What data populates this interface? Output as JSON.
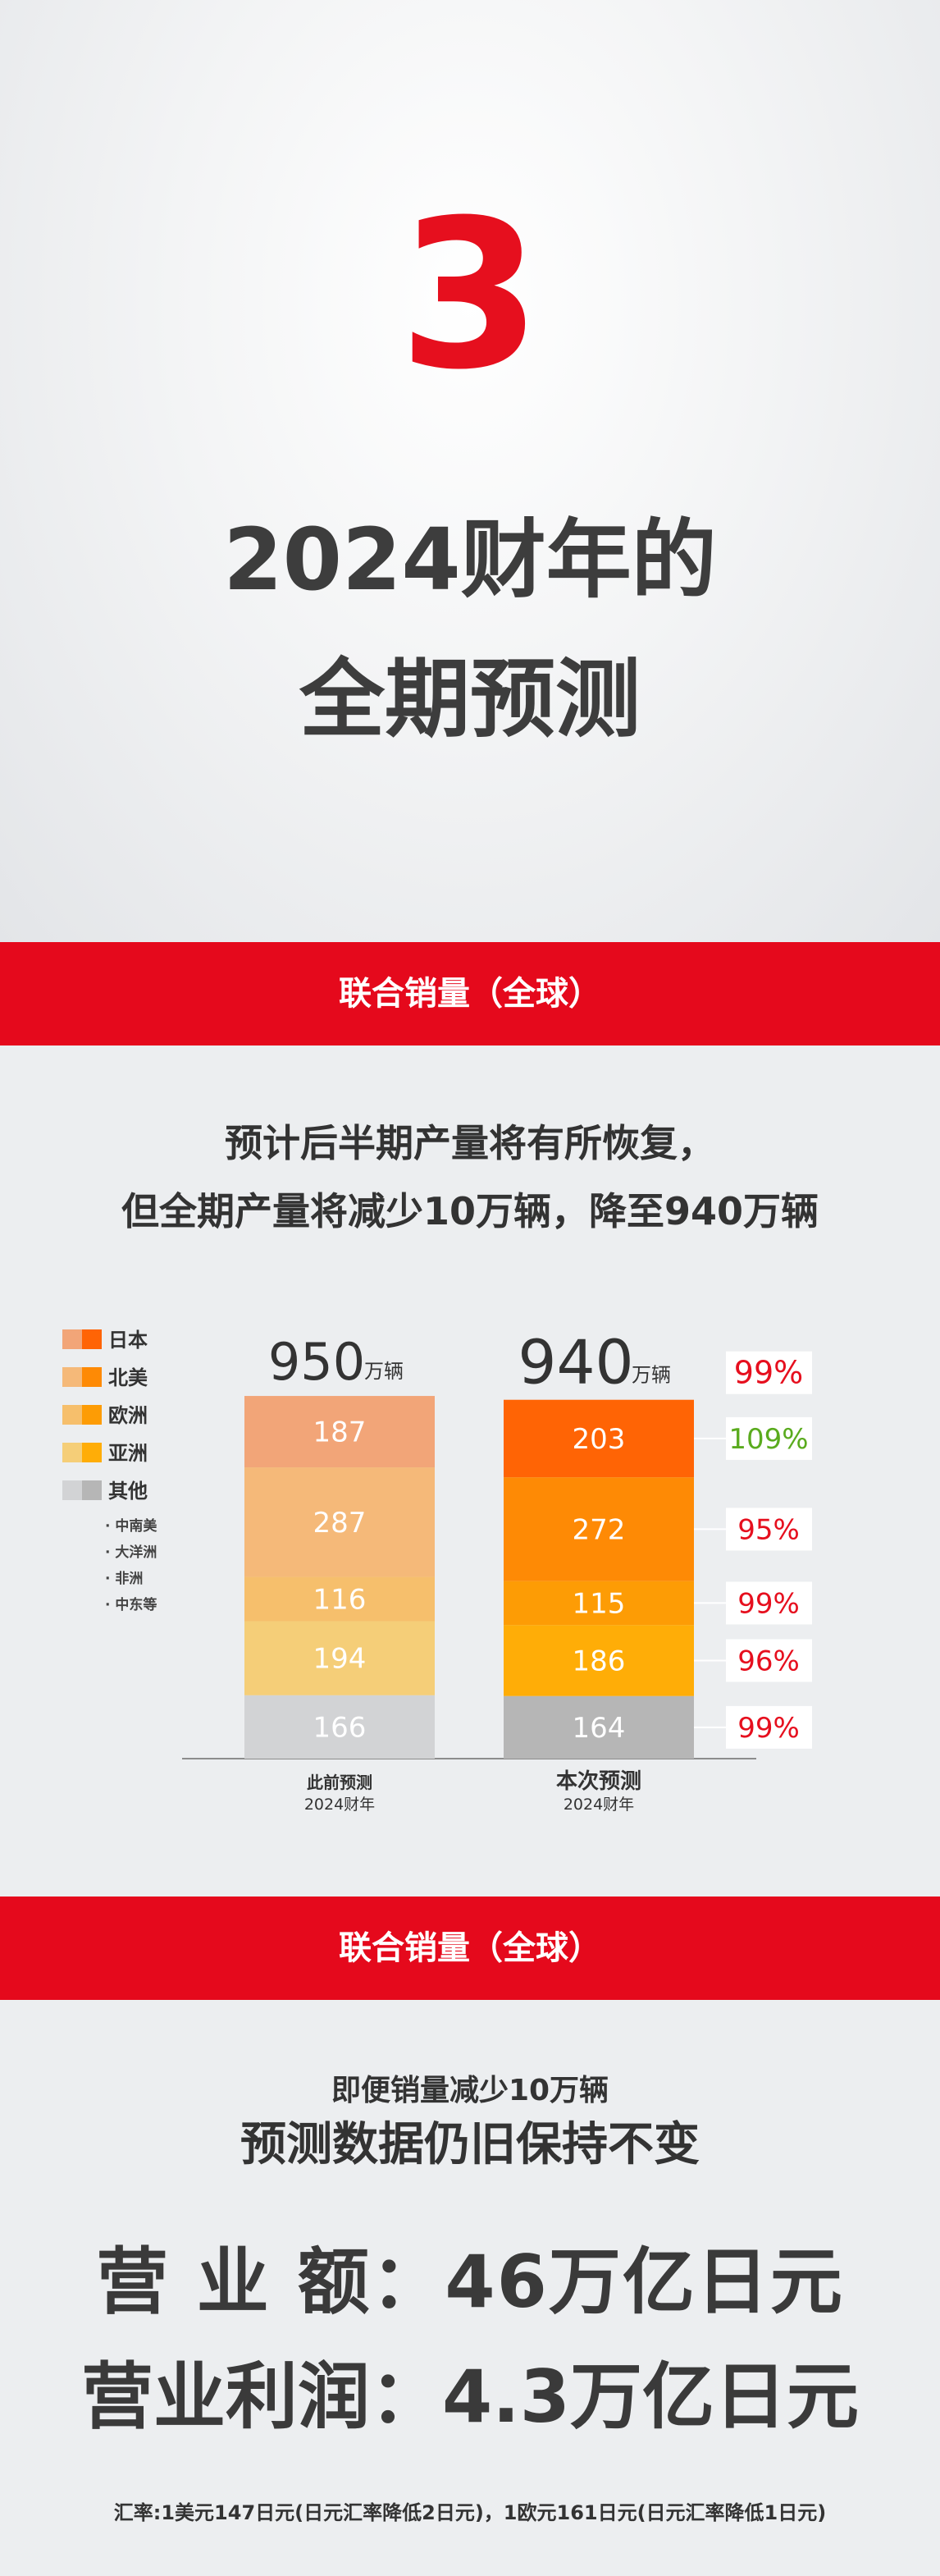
{
  "hero": {
    "number": "3",
    "title_line1": "2024财年的",
    "title_line2": "全期预测"
  },
  "section1": {
    "band_label": "联合销量（全球）",
    "subtitle_line1": "预计后半期产量将有所恢复，",
    "subtitle_line2": "但全期产量将减少10万辆，降至940万辆"
  },
  "chart_data": {
    "type": "bar",
    "stacked": true,
    "unit": "万辆",
    "categories": [
      "此前预测\n2024财年",
      "本次预测\n2024财年"
    ],
    "category_labels": [
      {
        "line1": "此前预测",
        "line2": "2024财年"
      },
      {
        "line1": "本次预测",
        "line2": "2024财年"
      }
    ],
    "totals": [
      950,
      940
    ],
    "series": [
      {
        "name": "其他",
        "values": [
          166,
          164
        ],
        "colors": [
          "#d2d3d5",
          "#b6b6b6"
        ],
        "ratio": "99%",
        "ratio_color": "#e60f1e"
      },
      {
        "name": "亚洲",
        "values": [
          194,
          186
        ],
        "colors": [
          "#f5ce78",
          "#ffad07"
        ],
        "ratio": "96%",
        "ratio_color": "#e60f1e"
      },
      {
        "name": "欧洲",
        "values": [
          116,
          115
        ],
        "colors": [
          "#f6bf6c",
          "#fd9c05"
        ],
        "ratio": "99%",
        "ratio_color": "#e60f1e"
      },
      {
        "name": "北美",
        "values": [
          287,
          272
        ],
        "colors": [
          "#f5b979",
          "#fe8a05"
        ],
        "ratio": "95%",
        "ratio_color": "#e60f1e"
      },
      {
        "name": "日本",
        "values": [
          187,
          203
        ],
        "colors": [
          "#f2a578",
          "#ff6405"
        ],
        "ratio": "109%",
        "ratio_color": "#5aab1e"
      }
    ],
    "total_ratio": "99%",
    "total_ratio_color": "#e60f1e",
    "legend": [
      "日本",
      "北美",
      "欧洲",
      "亚洲",
      "其他"
    ],
    "legend_colors": [
      [
        "#f2a578",
        "#ff6405"
      ],
      [
        "#f5b979",
        "#fe8a05"
      ],
      [
        "#f6bf6c",
        "#fd9c05"
      ],
      [
        "#f5ce78",
        "#ffad07"
      ],
      [
        "#d2d3d5",
        "#b6b6b6"
      ]
    ],
    "legend_notes": [
      "· 中南美",
      "· 大洋洲",
      "· 非洲",
      "· 中东等"
    ],
    "legend_placement": "left",
    "grid": false
  },
  "section2": {
    "band_label": "联合销量（全球）",
    "subtitle_line1": "即便销量减少10万辆",
    "subtitle_line2": "预测数据仍旧保持不变",
    "revenue": "营 业 额：46万亿日元",
    "profit": "营业利润：4.3万亿日元",
    "note": "汇率:1美元147日元(日元汇率降低2日元)，1欧元161日元(日元汇率降低1日元)"
  }
}
